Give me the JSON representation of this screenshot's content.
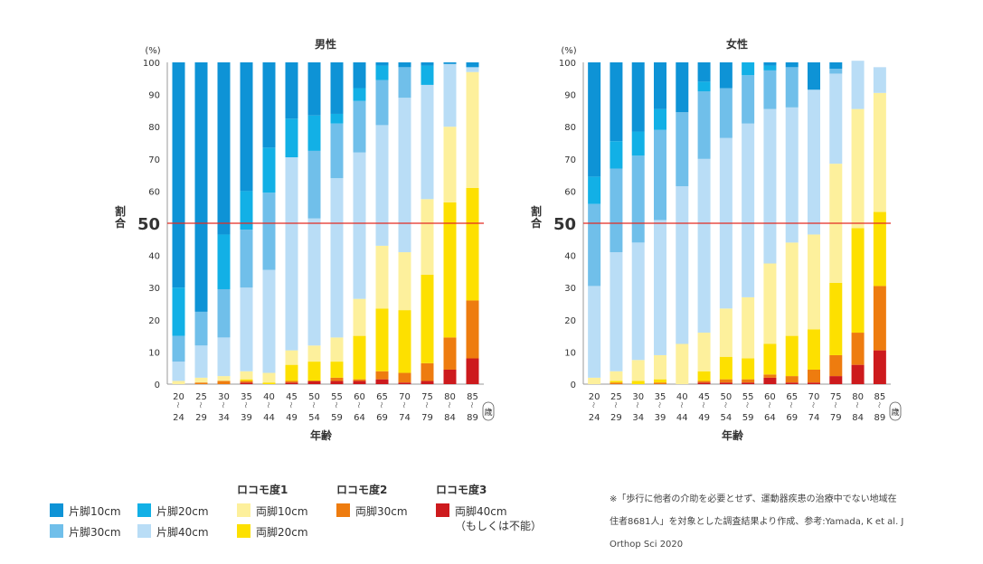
{
  "colors": {
    "one_leg_10": "#0e93d6",
    "one_leg_20": "#12b0e6",
    "one_leg_30": "#70bfea",
    "one_leg_40": "#b9ddf6",
    "two_leg_10": "#fdf09c",
    "two_leg_20": "#fde000",
    "two_leg_30": "#ee7c0f",
    "two_leg_40": "#cd1a1d",
    "ref_line": "#e32b22"
  },
  "chart_data": [
    {
      "type": "bar",
      "stacked": true,
      "title": "男性",
      "ylabel": "割合",
      "yunit": "(%)",
      "xlabel": "年齢",
      "xunit": "歳",
      "ylim": [
        0,
        100
      ],
      "yticks": [
        0,
        10,
        20,
        30,
        40,
        50,
        60,
        70,
        80,
        90,
        100
      ],
      "ref_line": 50,
      "ref_label": "50",
      "categories": [
        [
          "20",
          "24"
        ],
        [
          "25",
          "29"
        ],
        [
          "30",
          "34"
        ],
        [
          "35",
          "39"
        ],
        [
          "40",
          "44"
        ],
        [
          "45",
          "49"
        ],
        [
          "50",
          "54"
        ],
        [
          "55",
          "59"
        ],
        [
          "60",
          "64"
        ],
        [
          "65",
          "69"
        ],
        [
          "70",
          "74"
        ],
        [
          "75",
          "79"
        ],
        [
          "80",
          "84"
        ],
        [
          "85",
          "89"
        ]
      ],
      "series": [
        {
          "name": "両脚40cm（もしくは不能）",
          "color_key": "two_leg_40",
          "values": [
            0,
            0,
            0,
            0.5,
            0,
            0.5,
            1,
            1,
            1,
            1.5,
            0.5,
            1,
            4.5,
            8
          ]
        },
        {
          "name": "両脚30cm",
          "color_key": "two_leg_30",
          "values": [
            0,
            0.5,
            1,
            0.5,
            0,
            0.5,
            0,
            1,
            0.5,
            2.5,
            3,
            5.5,
            10,
            18
          ]
        },
        {
          "name": "両脚20cm",
          "color_key": "two_leg_20",
          "values": [
            0,
            0,
            0,
            0.5,
            0.5,
            5,
            6,
            5,
            13.5,
            19.5,
            19.5,
            27.5,
            42,
            35
          ]
        },
        {
          "name": "両脚10cm",
          "color_key": "two_leg_10",
          "values": [
            1,
            1.5,
            1.5,
            2.5,
            3,
            4.5,
            5,
            7.5,
            11.5,
            19.5,
            18,
            23.5,
            23.5,
            36
          ]
        },
        {
          "name": "片脚40cm",
          "color_key": "one_leg_40",
          "values": [
            6,
            10,
            12,
            26,
            32,
            60,
            39.5,
            49.5,
            45.5,
            37.5,
            48,
            35.5,
            19.5,
            1.5
          ]
        },
        {
          "name": "片脚30cm",
          "color_key": "one_leg_30",
          "values": [
            8,
            10.5,
            15,
            18,
            24,
            0,
            21,
            17,
            16,
            14,
            9.5,
            0,
            0,
            0
          ]
        },
        {
          "name": "片脚20cm",
          "color_key": "one_leg_20",
          "values": [
            15,
            0,
            17,
            12,
            14,
            12,
            11,
            3,
            4,
            4.5,
            0,
            6,
            0,
            0
          ]
        },
        {
          "name": "片脚10cm",
          "color_key": "one_leg_10",
          "values": [
            70,
            77.5,
            53.5,
            40,
            26.5,
            17.5,
            16.5,
            16,
            8,
            1,
            1.5,
            1,
            0.5,
            1.5
          ]
        }
      ]
    },
    {
      "type": "bar",
      "stacked": true,
      "title": "女性",
      "ylabel": "割合",
      "yunit": "(%)",
      "xlabel": "年齢",
      "xunit": "歳",
      "ylim": [
        0,
        100
      ],
      "yticks": [
        0,
        10,
        20,
        30,
        40,
        50,
        60,
        70,
        80,
        90,
        100
      ],
      "ref_line": 50,
      "ref_label": "50",
      "categories": [
        [
          "20",
          "24"
        ],
        [
          "25",
          "29"
        ],
        [
          "30",
          "34"
        ],
        [
          "35",
          "39"
        ],
        [
          "40",
          "44"
        ],
        [
          "45",
          "49"
        ],
        [
          "50",
          "54"
        ],
        [
          "55",
          "59"
        ],
        [
          "60",
          "64"
        ],
        [
          "65",
          "69"
        ],
        [
          "70",
          "74"
        ],
        [
          "75",
          "79"
        ],
        [
          "80",
          "84"
        ],
        [
          "85",
          "89"
        ]
      ],
      "series": [
        {
          "name": "両脚40cm（もしくは不能）",
          "color_key": "two_leg_40",
          "values": [
            0,
            0,
            0,
            0,
            0,
            0.5,
            0.5,
            0.5,
            2,
            0.5,
            0.5,
            2.5,
            6,
            10.5
          ]
        },
        {
          "name": "両脚30cm",
          "color_key": "two_leg_30",
          "values": [
            0,
            0.5,
            0,
            0.5,
            0,
            0.5,
            1,
            1,
            1,
            2,
            4,
            6.5,
            10,
            20
          ]
        },
        {
          "name": "両脚20cm",
          "color_key": "two_leg_20",
          "values": [
            0,
            0.5,
            1,
            1,
            0,
            3,
            7,
            6.5,
            9.5,
            12.5,
            12.5,
            22.5,
            32.5,
            23
          ]
        },
        {
          "name": "両脚10cm",
          "color_key": "two_leg_10",
          "values": [
            2,
            3,
            6.5,
            7.5,
            12.5,
            12,
            15,
            19,
            25,
            29,
            29.5,
            37,
            37,
            37
          ]
        },
        {
          "name": "片脚40cm",
          "color_key": "one_leg_40",
          "values": [
            28.5,
            37,
            36.5,
            42,
            49,
            54,
            53,
            54,
            48,
            42,
            45,
            28,
            15,
            8
          ]
        },
        {
          "name": "片脚30cm",
          "color_key": "one_leg_30",
          "values": [
            25.5,
            26,
            27,
            28,
            23,
            21,
            15.5,
            15,
            12,
            12.5,
            0,
            1.5,
            0,
            0
          ]
        },
        {
          "name": "片脚20cm",
          "color_key": "one_leg_20",
          "values": [
            8.5,
            8.5,
            7.5,
            6.5,
            0,
            3,
            0,
            4,
            1.5,
            0,
            0,
            0,
            0,
            0
          ]
        },
        {
          "name": "片脚10cm",
          "color_key": "one_leg_10",
          "values": [
            35.5,
            24.5,
            21.5,
            14.5,
            15.5,
            6,
            8,
            0,
            1,
            1.5,
            8.5,
            2,
            0,
            0
          ]
        }
      ]
    }
  ],
  "legend": {
    "groups": {
      "g1": "ロコモ度1",
      "g2": "ロコモ度2",
      "g3": "ロコモ度3"
    },
    "items": {
      "one_leg_10": "片脚10cm",
      "one_leg_20": "片脚20cm",
      "one_leg_30": "片脚30cm",
      "one_leg_40": "片脚40cm",
      "two_leg_10": "両脚10cm",
      "two_leg_20": "両脚20cm",
      "two_leg_30": "両脚30cm",
      "two_leg_40_line1": "両脚40cm",
      "two_leg_40_line2": "（もしくは不能）"
    }
  },
  "note": {
    "line1": "※「歩行に他者の介助を必要とせず、運動器疾患の治療中でない地域在",
    "line2": "住者8681人」を対象とした調査結果より作成、参考:Yamada, K et al. J",
    "line3": "Orthop Sci 2020"
  }
}
